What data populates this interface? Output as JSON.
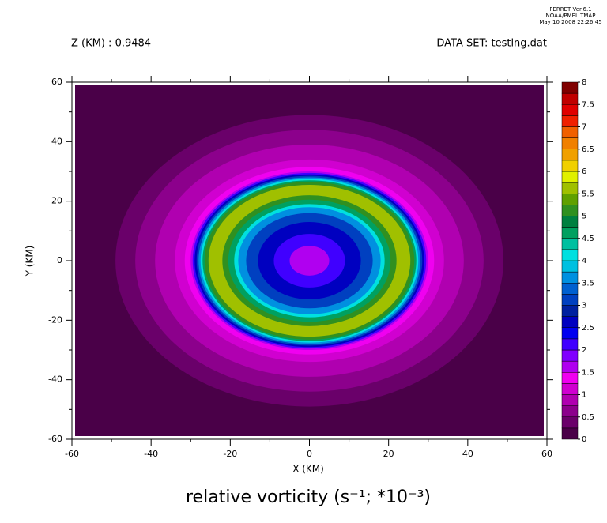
{
  "chart_data": {
    "type": "filled-contour",
    "header": [
      "FERRET Ver.6.1",
      "NOAA/PMEL TMAP",
      "May 10 2008 22:26:45"
    ],
    "subtitle_left": "Z (KM) : 0.9484",
    "subtitle_right": "DATA SET: testing.dat",
    "title": "relative vorticity (s⁻¹; *10⁻³)",
    "x_label": "X (KM)",
    "y_label": "Y (KM)",
    "xlim": [
      -60,
      60
    ],
    "ylim": [
      -60,
      60
    ],
    "xticks": [
      -60,
      -40,
      -20,
      0,
      20,
      40,
      60
    ],
    "yticks": [
      -60,
      -40,
      -20,
      0,
      20,
      40,
      60
    ],
    "levels": [
      0,
      0.25,
      0.5,
      0.75,
      1,
      1.25,
      1.5,
      1.75,
      2,
      2.25,
      2.5,
      2.75,
      3,
      3.25,
      3.5,
      3.75,
      4,
      4.25,
      4.5,
      4.75,
      5,
      5.25,
      5.5,
      5.75,
      6,
      6.25,
      6.5,
      6.75,
      7,
      7.25,
      7.5,
      7.75,
      8
    ],
    "colors": [
      "#4a0048",
      "#6a006a",
      "#8c008c",
      "#b000b0",
      "#d000d0",
      "#f000f0",
      "#b000f0",
      "#8000ff",
      "#4000ff",
      "#0000f0",
      "#0000c0",
      "#0020a0",
      "#0040c0",
      "#0060d0",
      "#0090e0",
      "#00c0e0",
      "#00e0e0",
      "#00c0a0",
      "#00a060",
      "#008040",
      "#309020",
      "#60a000",
      "#a0c000",
      "#e0f000",
      "#f0d000",
      "#f0a000",
      "#f08000",
      "#f06000",
      "#f02000",
      "#e00000",
      "#c00000",
      "#800000"
    ],
    "colorbar_ticks": [
      0,
      0.5,
      1,
      1.5,
      2,
      2.5,
      3,
      3.5,
      4,
      4.5,
      5,
      5.5,
      6,
      6.5,
      7,
      7.5,
      8
    ],
    "contours": [
      {
        "radius": 49,
        "level": 0.25
      },
      {
        "radius": 44,
        "level": 0.5
      },
      {
        "radius": 39,
        "level": 0.75
      },
      {
        "radius": 34,
        "level": 1
      },
      {
        "radius": 31.5,
        "level": 1.25
      },
      {
        "radius": 30,
        "level": 1.5
      },
      {
        "radius": 29.5,
        "level": 2
      },
      {
        "radius": 29,
        "level": 2.5
      },
      {
        "radius": 28.5,
        "level": 3
      },
      {
        "radius": 28,
        "level": 3.5
      },
      {
        "radius": 27.5,
        "level": 4
      },
      {
        "radius": 27,
        "level": 4.5
      },
      {
        "radius": 26.5,
        "level": 5
      },
      {
        "radius": 25.5,
        "level": 5.5
      },
      {
        "radius": 22,
        "level": 5
      },
      {
        "radius": 20.5,
        "level": 4.5
      },
      {
        "radius": 19,
        "level": 4
      },
      {
        "radius": 18,
        "level": 3.5
      },
      {
        "radius": 16,
        "level": 3
      },
      {
        "radius": 13,
        "level": 2.5
      },
      {
        "radius": 9,
        "level": 2
      },
      {
        "radius": 5,
        "level": 1.5
      }
    ]
  }
}
